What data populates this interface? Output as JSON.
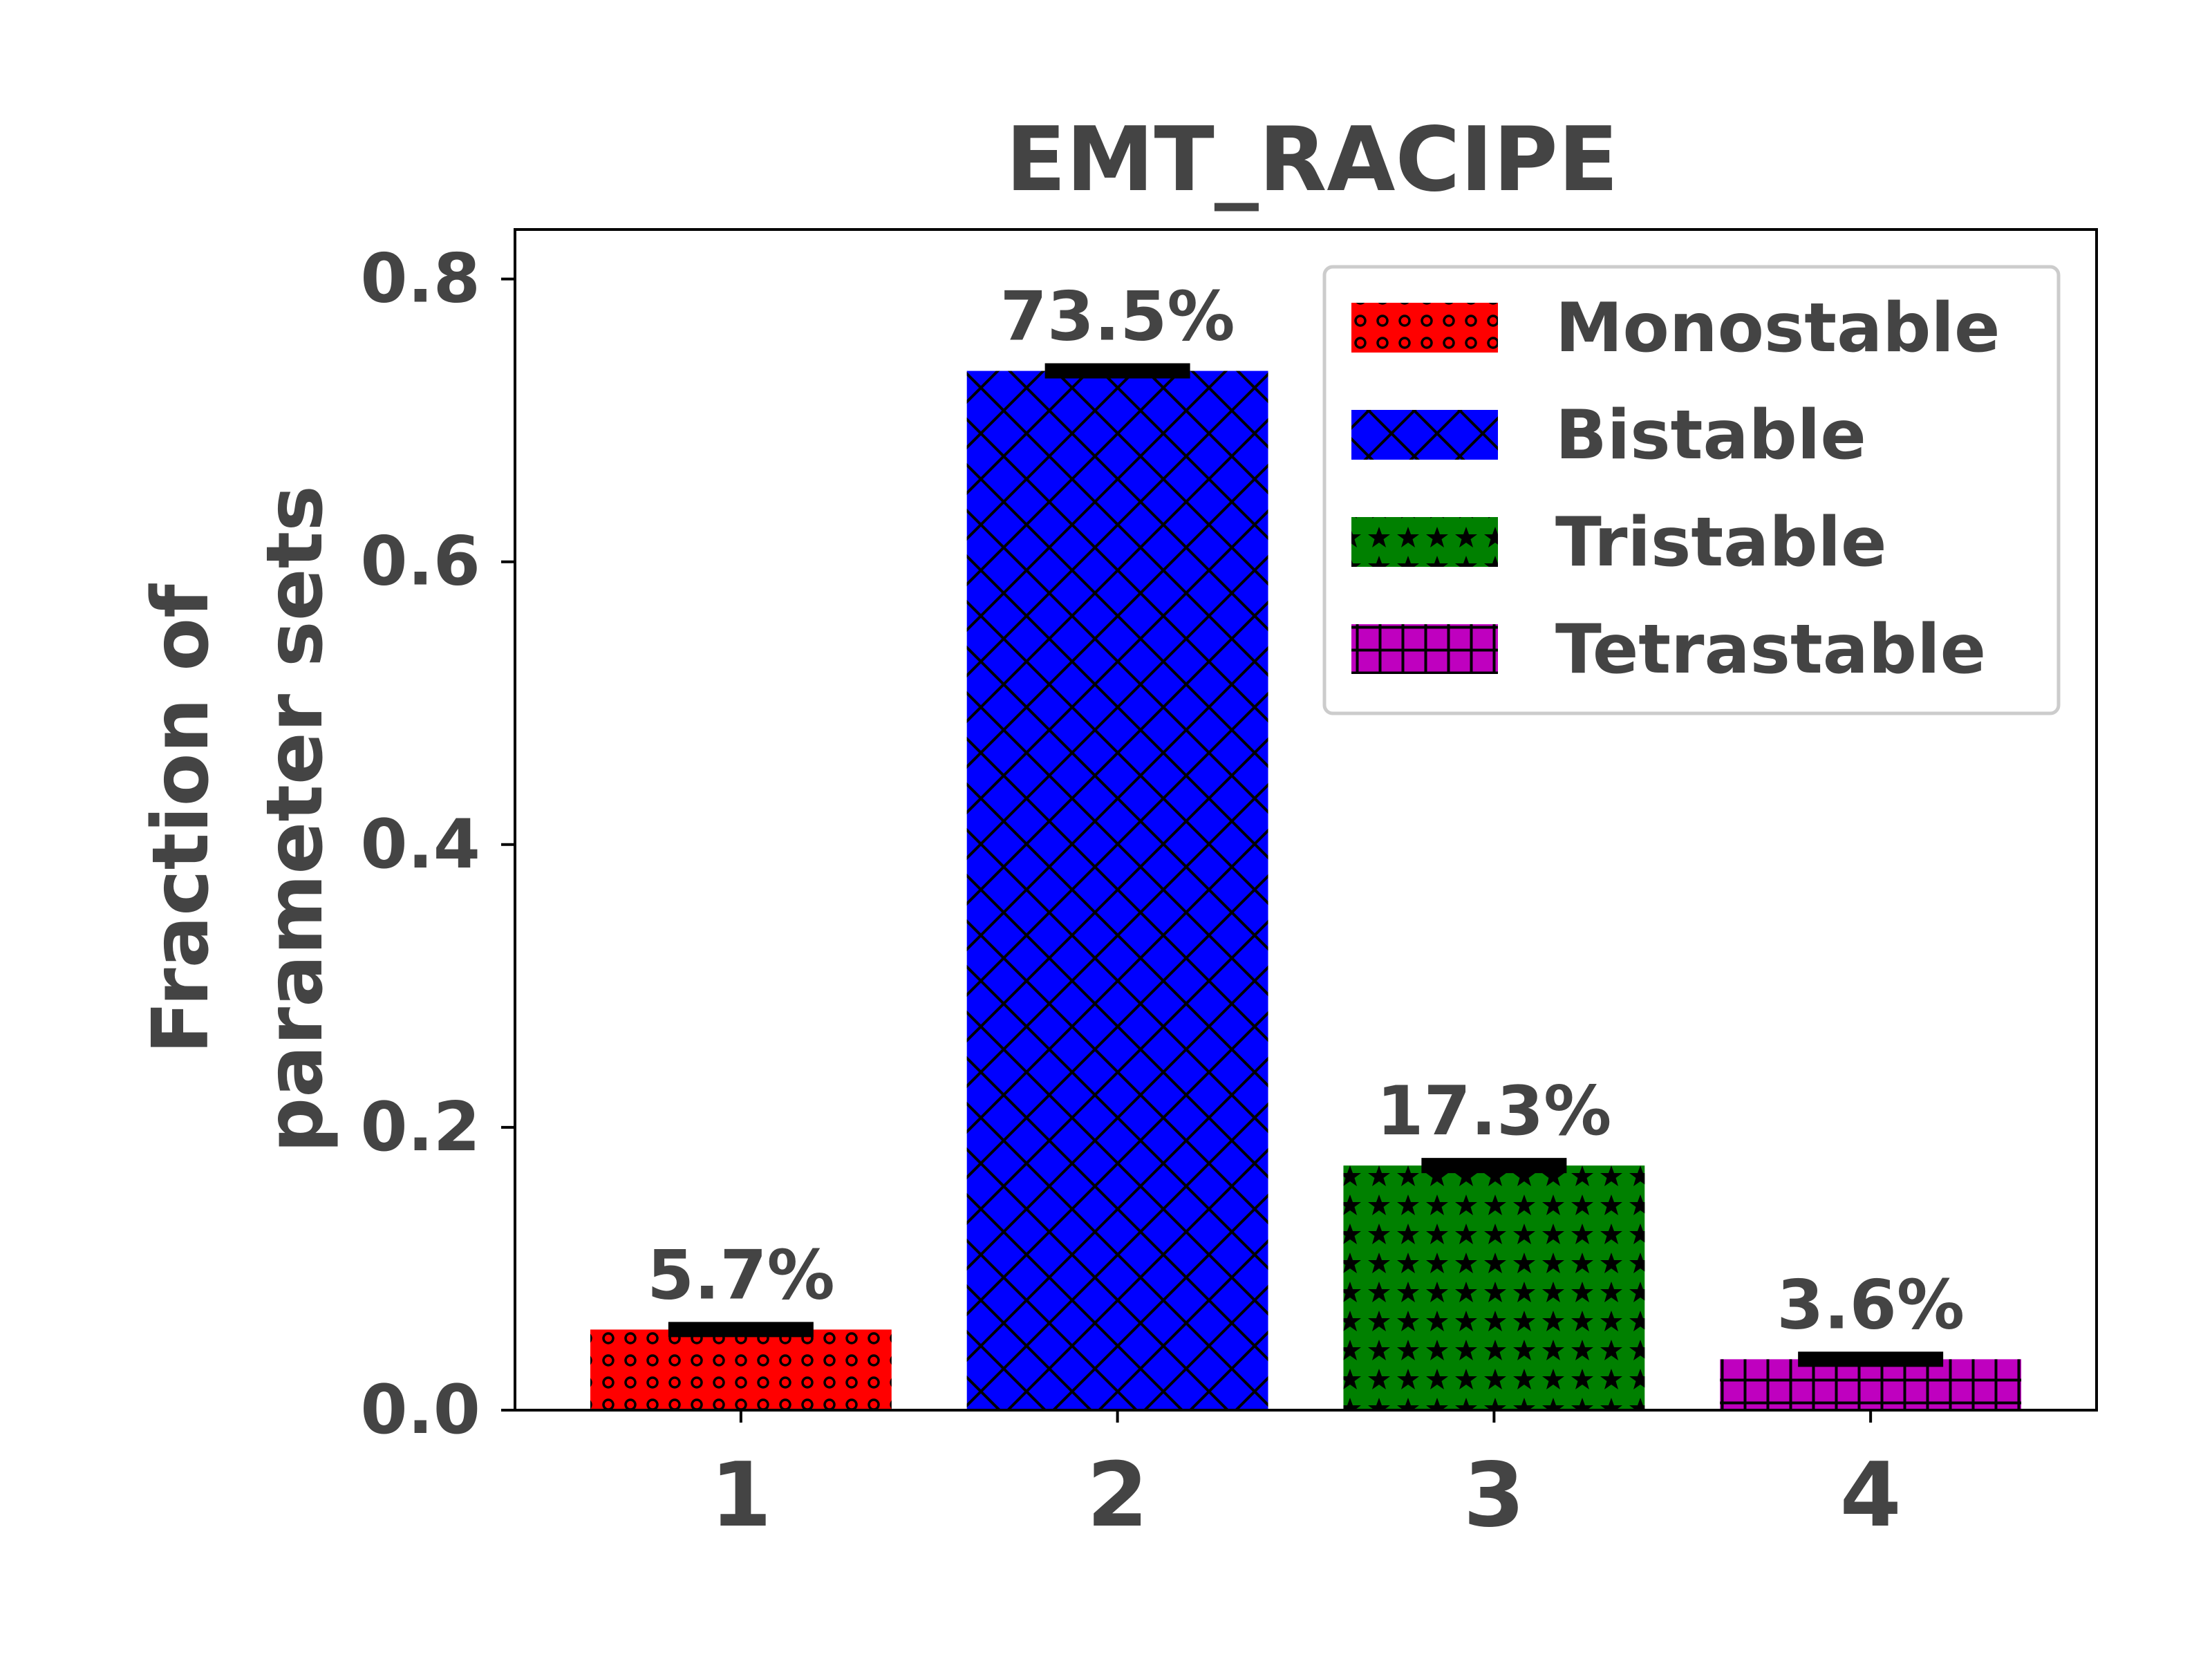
{
  "chart_data": {
    "type": "bar",
    "title": "EMT_RACIPE",
    "ylabel_lines": [
      "Fraction of",
      "parameter sets"
    ],
    "xlabel": "",
    "categories": [
      "1",
      "2",
      "3",
      "4"
    ],
    "values": [
      0.057,
      0.735,
      0.173,
      0.036
    ],
    "errors": [
      0.002,
      0.002,
      0.002,
      0.002
    ],
    "data_labels": [
      "5.7%",
      "73.5%",
      "17.3%",
      "3.6%"
    ],
    "ylim": [
      0,
      0.835
    ],
    "yticks": [
      0.0,
      0.2,
      0.4,
      0.6,
      0.8
    ],
    "ytick_labels": [
      "0.0",
      "0.2",
      "0.4",
      "0.6",
      "0.8"
    ],
    "grid": false,
    "legend_position": "top-right",
    "series": [
      {
        "name": "Monostable",
        "color": "#ff0000",
        "hatch": "circles"
      },
      {
        "name": "Bistable",
        "color": "#0000ff",
        "hatch": "crosshatch"
      },
      {
        "name": "Tristable",
        "color": "#008000",
        "hatch": "stars"
      },
      {
        "name": "Tetrastable",
        "color": "#bf00bf",
        "hatch": "grid"
      }
    ]
  }
}
